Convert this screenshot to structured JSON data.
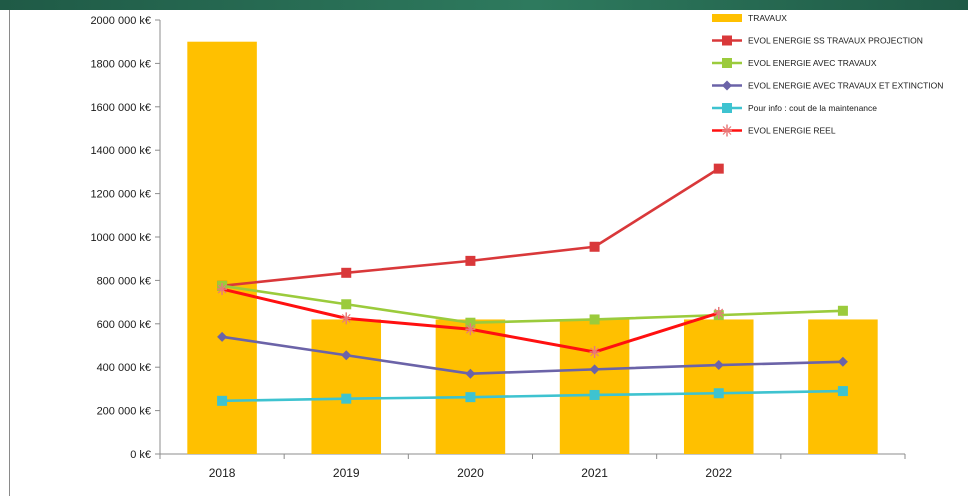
{
  "chart_data": {
    "type": "bar",
    "categories": [
      "2018",
      "2019",
      "2020",
      "2021",
      "2022",
      ""
    ],
    "ylim": [
      0,
      2000000
    ],
    "yticks": [
      0,
      200000,
      400000,
      600000,
      800000,
      1000000,
      1200000,
      1400000,
      1600000,
      1800000,
      2000000
    ],
    "ytick_labels": [
      "0 k€",
      "200 000 k€",
      "400 000 k€",
      "600 000 k€",
      "800 000 k€",
      "1000 000 k€",
      "1200 000 k€",
      "1400 000 k€",
      "1600 000 k€",
      "1800 000 k€",
      "2000 000 k€"
    ],
    "grid": false,
    "legend_position": "top-right",
    "series": [
      {
        "name": "TRAVAUX",
        "kind": "bar",
        "color": "#FFC000",
        "values": [
          1900000,
          620000,
          620000,
          620000,
          620000,
          620000
        ]
      },
      {
        "name": "EVOL ENERGIE SS TRAVAUX PROJECTION",
        "kind": "line",
        "color": "#D9383A",
        "marker": "square",
        "values": [
          775000,
          835000,
          890000,
          955000,
          1315000,
          null
        ]
      },
      {
        "name": "EVOL ENERGIE AVEC TRAVAUX",
        "kind": "line",
        "color": "#9BCB3C",
        "marker": "square",
        "values": [
          775000,
          690000,
          605000,
          620000,
          640000,
          660000
        ]
      },
      {
        "name": "EVOL ENERGIE AVEC TRAVAUX ET EXTINCTION",
        "kind": "line",
        "color": "#6B63A8",
        "marker": "diamond",
        "values": [
          540000,
          455000,
          370000,
          390000,
          410000,
          425000
        ]
      },
      {
        "name": "Pour info : cout de la maintenance",
        "kind": "line",
        "color": "#3EC3D0",
        "marker": "square",
        "values": [
          245000,
          255000,
          262000,
          272000,
          280000,
          290000
        ]
      },
      {
        "name": "EVOL ENERGIE REEL",
        "kind": "line",
        "color": "#FF1010",
        "marker": "star",
        "values": [
          760000,
          625000,
          575000,
          470000,
          650000,
          null
        ]
      }
    ]
  }
}
